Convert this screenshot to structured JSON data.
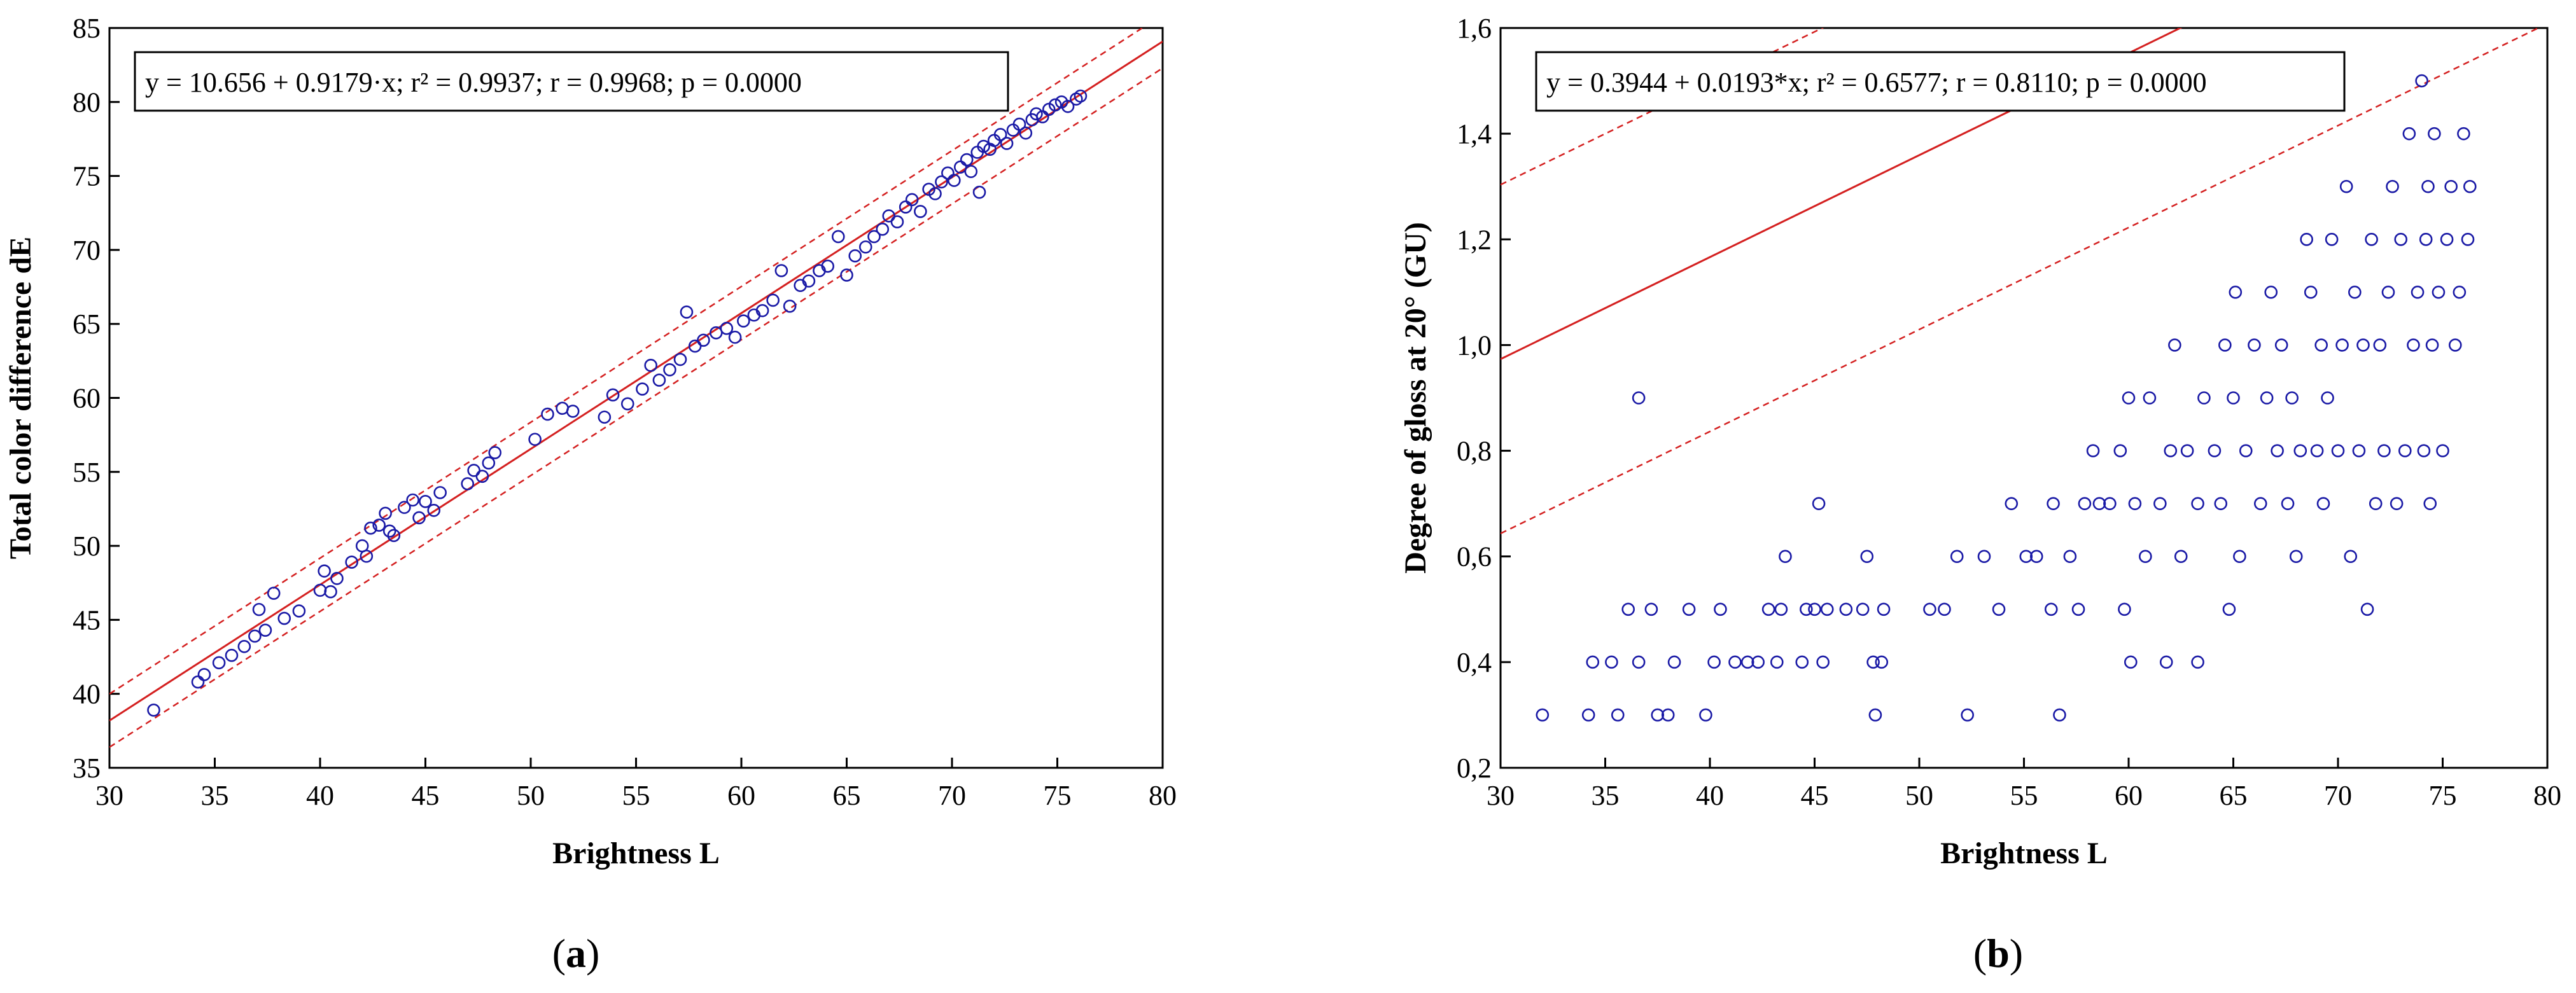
{
  "chart_data": [
    {
      "type": "scatter",
      "panel_label": "a",
      "xlabel": "Brightness L",
      "ylabel": "Total color difference dE",
      "xlim": [
        30,
        80
      ],
      "ylim": [
        35,
        85
      ],
      "xticks": [
        "30",
        "35",
        "40",
        "45",
        "50",
        "55",
        "60",
        "65",
        "70",
        "75",
        "80"
      ],
      "yticks": [
        "35",
        "40",
        "45",
        "50",
        "55",
        "60",
        "65",
        "70",
        "75",
        "80",
        "85"
      ],
      "equation": "y = 10.656 + 0.9179·x;  r² = 0.9937; r = 0.9968; p = 0.0000",
      "fit": {
        "intercept": 10.656,
        "slope": 0.9179,
        "ci_offset": 1.8
      },
      "colors": {
        "points": "#1a1aa6",
        "fit": "#d42020",
        "frame": "#000000"
      },
      "series": [
        {
          "name": "observations",
          "points": [
            [
              32.1,
              38.9
            ],
            [
              34.2,
              40.8
            ],
            [
              34.5,
              41.3
            ],
            [
              35.2,
              42.1
            ],
            [
              35.8,
              42.6
            ],
            [
              36.4,
              43.2
            ],
            [
              36.9,
              43.9
            ],
            [
              37.1,
              45.7
            ],
            [
              37.4,
              44.3
            ],
            [
              37.8,
              46.8
            ],
            [
              38.3,
              45.1
            ],
            [
              39.0,
              45.6
            ],
            [
              40.0,
              47.0
            ],
            [
              40.2,
              48.3
            ],
            [
              40.5,
              46.9
            ],
            [
              40.8,
              47.8
            ],
            [
              41.5,
              48.9
            ],
            [
              42.0,
              50.0
            ],
            [
              42.2,
              49.3
            ],
            [
              42.4,
              51.2
            ],
            [
              42.8,
              51.4
            ],
            [
              43.1,
              52.2
            ],
            [
              43.3,
              51.0
            ],
            [
              43.5,
              50.7
            ],
            [
              44.0,
              52.6
            ],
            [
              44.4,
              53.1
            ],
            [
              44.7,
              51.9
            ],
            [
              45.0,
              53.0
            ],
            [
              45.4,
              52.4
            ],
            [
              45.7,
              53.6
            ],
            [
              47.0,
              54.2
            ],
            [
              47.3,
              55.1
            ],
            [
              47.7,
              54.7
            ],
            [
              48.0,
              55.6
            ],
            [
              48.3,
              56.3
            ],
            [
              50.2,
              57.2
            ],
            [
              50.8,
              58.9
            ],
            [
              51.5,
              59.3
            ],
            [
              52.0,
              59.1
            ],
            [
              53.5,
              58.7
            ],
            [
              53.9,
              60.2
            ],
            [
              54.6,
              59.6
            ],
            [
              55.3,
              60.6
            ],
            [
              55.7,
              62.2
            ],
            [
              56.1,
              61.2
            ],
            [
              56.6,
              61.9
            ],
            [
              57.1,
              62.6
            ],
            [
              57.4,
              65.8
            ],
            [
              57.8,
              63.5
            ],
            [
              58.2,
              63.9
            ],
            [
              58.8,
              64.4
            ],
            [
              59.3,
              64.7
            ],
            [
              59.7,
              64.1
            ],
            [
              60.1,
              65.2
            ],
            [
              60.6,
              65.6
            ],
            [
              61.0,
              65.9
            ],
            [
              61.5,
              66.6
            ],
            [
              61.9,
              68.6
            ],
            [
              62.3,
              66.2
            ],
            [
              62.8,
              67.6
            ],
            [
              63.2,
              67.9
            ],
            [
              63.7,
              68.6
            ],
            [
              64.1,
              68.9
            ],
            [
              64.6,
              70.9
            ],
            [
              65.0,
              68.3
            ],
            [
              65.4,
              69.6
            ],
            [
              65.9,
              70.2
            ],
            [
              66.3,
              70.9
            ],
            [
              66.7,
              71.4
            ],
            [
              67.0,
              72.3
            ],
            [
              67.4,
              71.9
            ],
            [
              67.8,
              72.9
            ],
            [
              68.1,
              73.4
            ],
            [
              68.5,
              72.6
            ],
            [
              68.9,
              74.1
            ],
            [
              69.2,
              73.8
            ],
            [
              69.5,
              74.6
            ],
            [
              69.8,
              75.2
            ],
            [
              70.1,
              74.7
            ],
            [
              70.4,
              75.6
            ],
            [
              70.7,
              76.1
            ],
            [
              70.9,
              75.3
            ],
            [
              71.2,
              76.6
            ],
            [
              71.5,
              77.0
            ],
            [
              71.3,
              73.9
            ],
            [
              71.8,
              76.8
            ],
            [
              72.0,
              77.4
            ],
            [
              72.3,
              77.8
            ],
            [
              72.6,
              77.2
            ],
            [
              72.9,
              78.1
            ],
            [
              73.2,
              78.5
            ],
            [
              73.5,
              77.9
            ],
            [
              73.8,
              78.8
            ],
            [
              74.0,
              79.2
            ],
            [
              74.3,
              79.0
            ],
            [
              74.6,
              79.5
            ],
            [
              74.9,
              79.8
            ],
            [
              75.2,
              80.0
            ],
            [
              75.5,
              79.7
            ],
            [
              75.9,
              80.2
            ],
            [
              76.1,
              80.4
            ]
          ]
        }
      ]
    },
    {
      "type": "scatter",
      "panel_label": "b",
      "xlabel": "Brightness L",
      "ylabel": "Degree of gloss at 20° (GU)",
      "xlim": [
        30,
        80
      ],
      "ylim": [
        0.2,
        1.6
      ],
      "xticks": [
        "30",
        "35",
        "40",
        "45",
        "50",
        "55",
        "60",
        "65",
        "70",
        "75",
        "80"
      ],
      "yticks": [
        "0,2",
        "0,4",
        "0,6",
        "0,8",
        "1,0",
        "1,2",
        "1,4",
        "1,6"
      ],
      "equation": "y = 0.3944 + 0.0193*x; r² = 0.6577; r = 0.8110; p = 0.0000",
      "fit": {
        "intercept": 0.3944,
        "slope": 0.0193,
        "ci_offset": 0.33
      },
      "colors": {
        "points": "#1a1aa6",
        "fit": "#d42020",
        "frame": "#000000"
      },
      "series": [
        {
          "name": "observations",
          "points": [
            [
              32.0,
              0.3
            ],
            [
              34.2,
              0.3
            ],
            [
              34.4,
              0.4
            ],
            [
              35.3,
              0.4
            ],
            [
              35.6,
              0.3
            ],
            [
              36.1,
              0.5
            ],
            [
              36.6,
              0.4
            ],
            [
              36.6,
              0.9
            ],
            [
              37.2,
              0.5
            ],
            [
              37.5,
              0.3
            ],
            [
              38.0,
              0.3
            ],
            [
              38.3,
              0.4
            ],
            [
              39.0,
              0.5
            ],
            [
              39.8,
              0.3
            ],
            [
              40.2,
              0.4
            ],
            [
              40.5,
              0.5
            ],
            [
              41.2,
              0.4
            ],
            [
              41.8,
              0.4
            ],
            [
              42.3,
              0.4
            ],
            [
              42.8,
              0.5
            ],
            [
              43.2,
              0.4
            ],
            [
              43.4,
              0.5
            ],
            [
              43.6,
              0.6
            ],
            [
              44.4,
              0.4
            ],
            [
              44.6,
              0.5
            ],
            [
              45.0,
              0.5
            ],
            [
              45.2,
              0.7
            ],
            [
              45.4,
              0.4
            ],
            [
              45.6,
              0.5
            ],
            [
              46.5,
              0.5
            ],
            [
              47.3,
              0.5
            ],
            [
              47.5,
              0.6
            ],
            [
              47.8,
              0.4
            ],
            [
              48.2,
              0.4
            ],
            [
              48.3,
              0.5
            ],
            [
              47.9,
              0.3
            ],
            [
              50.5,
              0.5
            ],
            [
              51.2,
              0.5
            ],
            [
              51.8,
              0.6
            ],
            [
              52.3,
              0.3
            ],
            [
              53.1,
              0.6
            ],
            [
              53.8,
              0.5
            ],
            [
              54.4,
              0.7
            ],
            [
              55.1,
              0.6
            ],
            [
              55.6,
              0.6
            ],
            [
              56.3,
              0.5
            ],
            [
              56.4,
              0.7
            ],
            [
              56.7,
              0.3
            ],
            [
              57.2,
              0.6
            ],
            [
              57.6,
              0.5
            ],
            [
              57.9,
              0.7
            ],
            [
              58.3,
              0.8
            ],
            [
              58.6,
              0.7
            ],
            [
              59.1,
              0.7
            ],
            [
              59.6,
              0.8
            ],
            [
              59.8,
              0.5
            ],
            [
              60.0,
              0.9
            ],
            [
              60.1,
              0.4
            ],
            [
              60.3,
              0.7
            ],
            [
              60.8,
              0.6
            ],
            [
              61.0,
              0.9
            ],
            [
              61.5,
              0.7
            ],
            [
              61.8,
              0.4
            ],
            [
              62.0,
              0.8
            ],
            [
              62.2,
              1.0
            ],
            [
              62.5,
              0.6
            ],
            [
              62.8,
              0.8
            ],
            [
              63.3,
              0.7
            ],
            [
              63.3,
              0.4
            ],
            [
              63.6,
              0.9
            ],
            [
              64.1,
              0.8
            ],
            [
              64.4,
              0.7
            ],
            [
              64.6,
              1.0
            ],
            [
              64.8,
              0.5
            ],
            [
              65.0,
              0.9
            ],
            [
              65.1,
              1.1
            ],
            [
              65.3,
              0.6
            ],
            [
              65.6,
              0.8
            ],
            [
              66.0,
              1.0
            ],
            [
              66.3,
              0.7
            ],
            [
              66.6,
              0.9
            ],
            [
              66.8,
              1.1
            ],
            [
              67.1,
              0.8
            ],
            [
              67.3,
              1.0
            ],
            [
              67.6,
              0.7
            ],
            [
              67.8,
              0.9
            ],
            [
              68.0,
              0.6
            ],
            [
              68.2,
              0.8
            ],
            [
              68.5,
              1.2
            ],
            [
              68.7,
              1.1
            ],
            [
              69.0,
              0.8
            ],
            [
              69.2,
              1.0
            ],
            [
              69.3,
              0.7
            ],
            [
              69.5,
              0.9
            ],
            [
              69.7,
              1.2
            ],
            [
              70.0,
              0.8
            ],
            [
              70.2,
              1.0
            ],
            [
              70.4,
              1.3
            ],
            [
              70.6,
              0.6
            ],
            [
              70.8,
              1.1
            ],
            [
              71.0,
              0.8
            ],
            [
              71.2,
              1.0
            ],
            [
              71.4,
              0.5
            ],
            [
              71.6,
              1.2
            ],
            [
              71.8,
              0.7
            ],
            [
              72.0,
              1.0
            ],
            [
              72.2,
              0.8
            ],
            [
              72.4,
              1.1
            ],
            [
              72.6,
              1.3
            ],
            [
              72.8,
              0.7
            ],
            [
              73.0,
              1.2
            ],
            [
              73.2,
              0.8
            ],
            [
              73.4,
              1.4
            ],
            [
              73.6,
              1.0
            ],
            [
              73.8,
              1.1
            ],
            [
              74.0,
              1.5
            ],
            [
              74.1,
              0.8
            ],
            [
              74.2,
              1.2
            ],
            [
              74.3,
              1.3
            ],
            [
              74.4,
              0.7
            ],
            [
              74.5,
              1.0
            ],
            [
              74.6,
              1.4
            ],
            [
              74.8,
              1.1
            ],
            [
              75.0,
              0.8
            ],
            [
              75.2,
              1.2
            ],
            [
              75.4,
              1.3
            ],
            [
              75.6,
              1.0
            ],
            [
              75.8,
              1.1
            ],
            [
              76.0,
              1.4
            ],
            [
              76.2,
              1.2
            ],
            [
              76.3,
              1.3
            ]
          ]
        }
      ]
    }
  ]
}
